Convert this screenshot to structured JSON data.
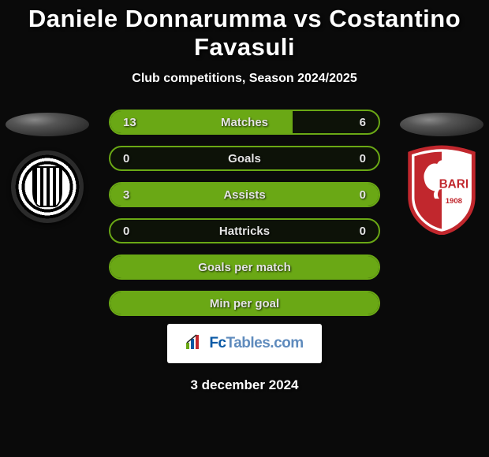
{
  "title": "Daniele Donnarumma vs Costantino Favasuli",
  "subtitle": "Club competitions, Season 2024/2025",
  "date": "3 december 2024",
  "branding": {
    "prefix": "Fc",
    "main": "Tables",
    "suffix": ".com"
  },
  "colors": {
    "accent": "#6aa815",
    "background": "#0a0a0a",
    "text": "#ffffff",
    "brand_primary": "#0b5aa6",
    "brand_secondary": "#5f8bbd",
    "brand_bg": "#ffffff",
    "bari_red": "#c1272d"
  },
  "rows": [
    {
      "label": "Matches",
      "left": "13",
      "right": "6",
      "fill_pct": 68
    },
    {
      "label": "Goals",
      "left": "0",
      "right": "0",
      "fill_pct": 0
    },
    {
      "label": "Assists",
      "left": "3",
      "right": "0",
      "fill_pct": 100
    },
    {
      "label": "Hattricks",
      "left": "0",
      "right": "0",
      "fill_pct": 0
    },
    {
      "label": "Goals per match",
      "left": "",
      "right": "",
      "fill_pct": 100
    },
    {
      "label": "Min per goal",
      "left": "",
      "right": "",
      "fill_pct": 100
    }
  ]
}
